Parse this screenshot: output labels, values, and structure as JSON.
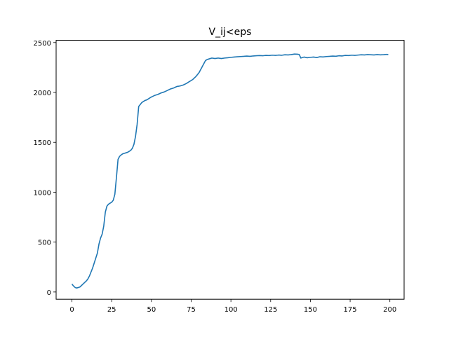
{
  "chart_data": {
    "type": "line",
    "title": "V_ij<eps",
    "xlabel": "",
    "ylabel": "",
    "xlim": [
      -9.95,
      208.95
    ],
    "ylim": [
      -72.5,
      2522.5
    ],
    "xticks": [
      0,
      25,
      50,
      75,
      100,
      125,
      150,
      175,
      200
    ],
    "yticks": [
      0,
      500,
      1000,
      1500,
      2000,
      2500
    ],
    "grid": false,
    "legend": "none",
    "series": [
      {
        "name": "",
        "color": "#1f77b4",
        "x": [
          0,
          1,
          2,
          3,
          4,
          5,
          6,
          7,
          8,
          9,
          10,
          11,
          12,
          13,
          14,
          15,
          16,
          17,
          18,
          19,
          20,
          21,
          22,
          23,
          24,
          25,
          26,
          27,
          28,
          29,
          30,
          31,
          32,
          33,
          34,
          35,
          36,
          37,
          38,
          39,
          40,
          41,
          42,
          43,
          44,
          45,
          46,
          47,
          48,
          49,
          50,
          52,
          54,
          56,
          58,
          60,
          62,
          64,
          66,
          68,
          70,
          72,
          74,
          76,
          78,
          80,
          82,
          84,
          85,
          86,
          88,
          90,
          92,
          94,
          96,
          98,
          100,
          102,
          104,
          106,
          108,
          110,
          112,
          114,
          116,
          118,
          120,
          122,
          124,
          126,
          128,
          130,
          132,
          134,
          136,
          138,
          140,
          142,
          143,
          144,
          145,
          146,
          148,
          150,
          152,
          154,
          156,
          158,
          160,
          162,
          164,
          166,
          168,
          170,
          172,
          174,
          176,
          178,
          180,
          182,
          184,
          186,
          188,
          190,
          192,
          194,
          196,
          198,
          199
        ],
        "y": [
          80,
          60,
          45,
          40,
          45,
          50,
          65,
          80,
          95,
          110,
          130,
          160,
          200,
          240,
          290,
          340,
          390,
          480,
          540,
          580,
          660,
          800,
          860,
          880,
          890,
          900,
          920,
          980,
          1150,
          1330,
          1360,
          1375,
          1385,
          1390,
          1395,
          1400,
          1410,
          1420,
          1440,
          1480,
          1560,
          1680,
          1860,
          1880,
          1900,
          1910,
          1920,
          1925,
          1935,
          1945,
          1955,
          1970,
          1980,
          1995,
          2005,
          2020,
          2035,
          2045,
          2060,
          2065,
          2075,
          2090,
          2110,
          2130,
          2160,
          2200,
          2260,
          2320,
          2330,
          2335,
          2345,
          2340,
          2345,
          2340,
          2345,
          2348,
          2352,
          2355,
          2358,
          2360,
          2362,
          2365,
          2362,
          2366,
          2368,
          2370,
          2368,
          2372,
          2370,
          2374,
          2372,
          2375,
          2373,
          2378,
          2376,
          2380,
          2385,
          2383,
          2380,
          2345,
          2350,
          2355,
          2348,
          2352,
          2355,
          2350,
          2358,
          2356,
          2360,
          2362,
          2365,
          2363,
          2368,
          2366,
          2372,
          2370,
          2374,
          2372,
          2375,
          2378,
          2376,
          2380,
          2378,
          2376,
          2380,
          2377,
          2379,
          2382,
          2380
        ]
      }
    ]
  }
}
